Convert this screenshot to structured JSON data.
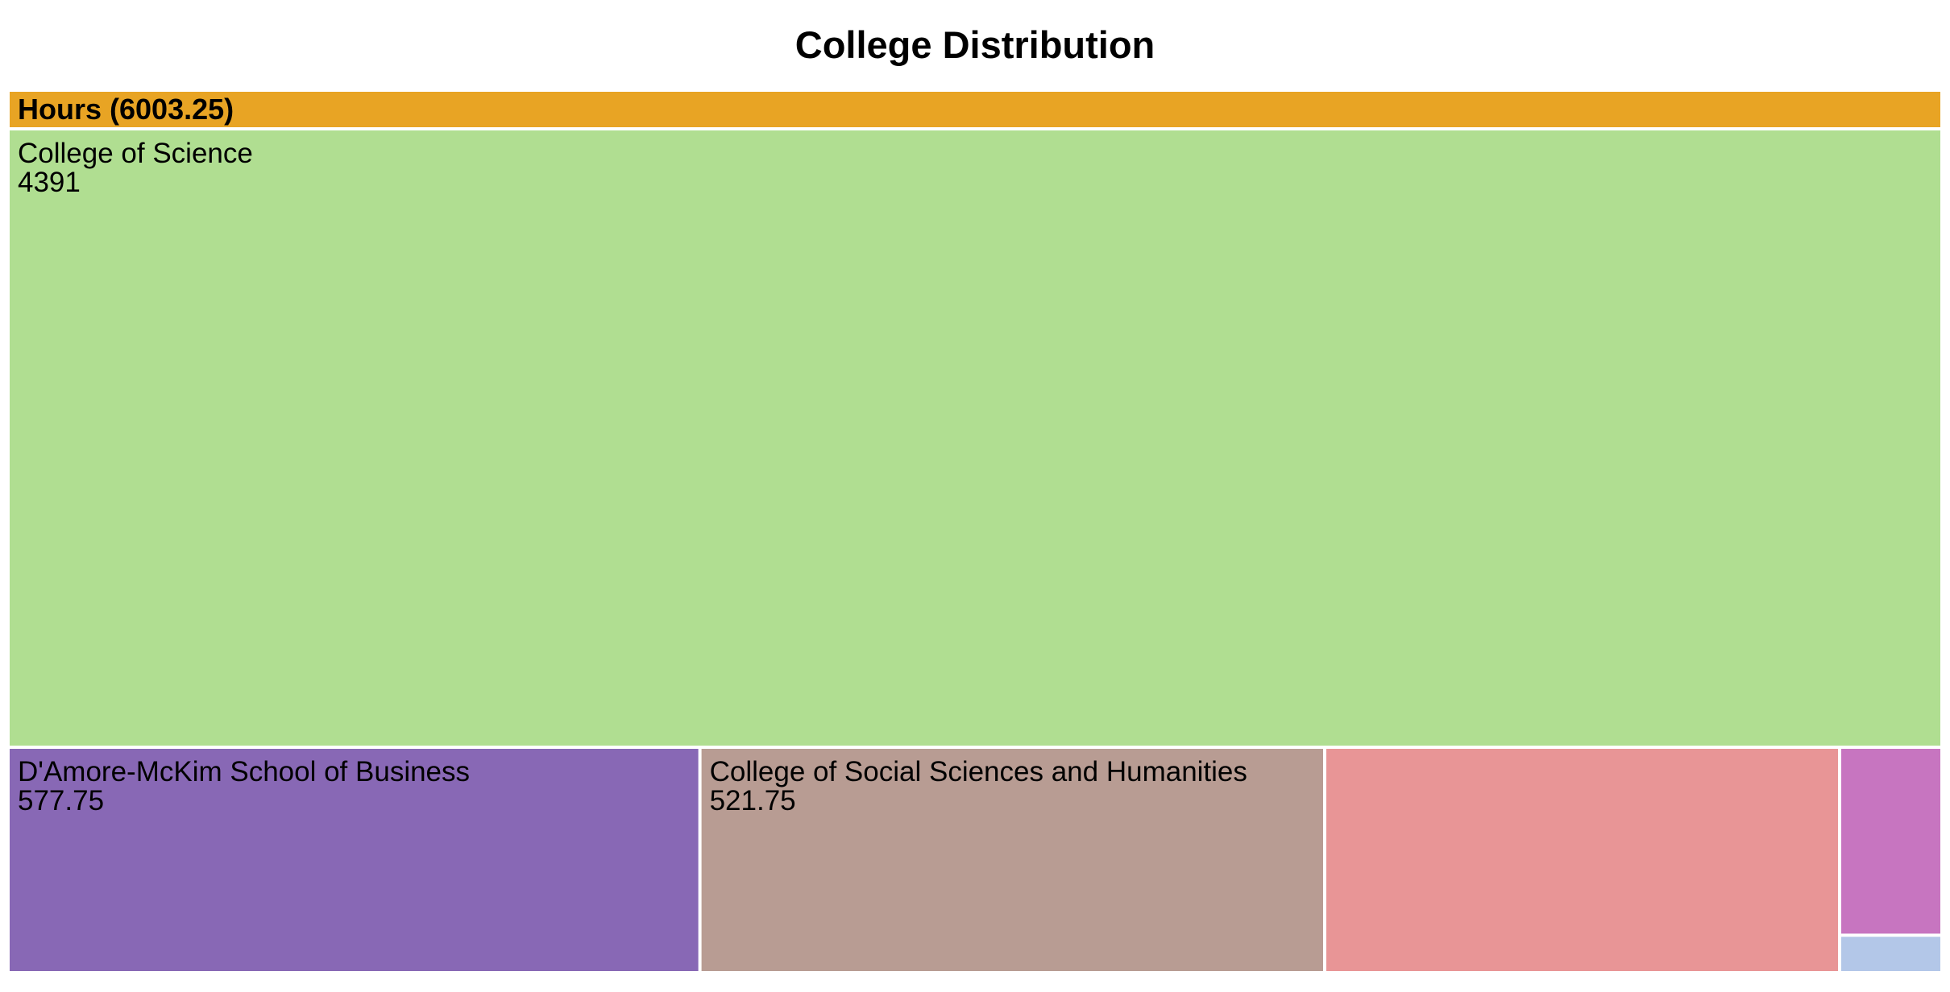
{
  "chart_data": {
    "type": "treemap",
    "title": "College Distribution",
    "root": {
      "name": "Hours",
      "value": 6003.25,
      "label": "Hours (6003.25)",
      "color": "#e8a424"
    },
    "children": [
      {
        "name": "College of Science",
        "value": 4391,
        "value_label": "4391",
        "color": "#b0de91",
        "show_label": true
      },
      {
        "name": "D'Amore-McKim School of Business",
        "value": 577.75,
        "value_label": "577.75",
        "color": "#8868b5",
        "show_label": true
      },
      {
        "name": "College of Social Sciences and Humanities",
        "value": 521.75,
        "value_label": "521.75",
        "color": "#b89c93",
        "show_label": true
      },
      {
        "name": "",
        "value": 430,
        "value_label": "",
        "color": "#e89596",
        "show_label": false
      },
      {
        "name": "",
        "value": 70,
        "value_label": "",
        "color": "#c775c0",
        "show_label": false
      },
      {
        "name": "",
        "value": 12.75,
        "value_label": "",
        "color": "#b3c7e8",
        "show_label": false
      }
    ]
  }
}
